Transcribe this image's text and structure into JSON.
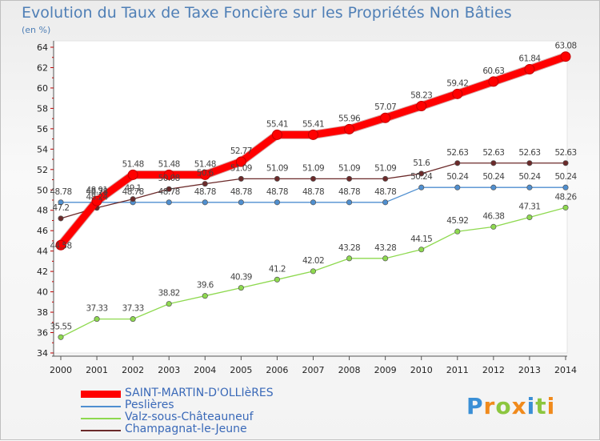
{
  "page": {
    "title": "Evolution du Taux de Taxe Foncière sur les Propriétés Non Bâties",
    "unit": "(en %)",
    "logo": "Proxiti"
  },
  "chart_data": {
    "type": "line",
    "title": "Evolution du Taux de Taxe Foncière sur les Propriétés Non Bâties",
    "ylabel": "(en %)",
    "xlabel": "",
    "ylim": [
      34,
      64
    ],
    "yticks": [
      34,
      36,
      38,
      40,
      42,
      44,
      46,
      48,
      50,
      52,
      54,
      56,
      58,
      60,
      62,
      64
    ],
    "grid": false,
    "legend_position": "bottom-left",
    "x": [
      "2000",
      "2001",
      "2002",
      "2003",
      "2004",
      "2005",
      "2006",
      "2007",
      "2008",
      "2009",
      "2010",
      "2011",
      "2012",
      "2013",
      "2014"
    ],
    "series": [
      {
        "name": "SAINT-MARTIN-D'OLLIèRES",
        "color": "#ff0000",
        "values": [
          44.58,
          48.91,
          51.48,
          51.48,
          51.48,
          52.77,
          55.41,
          55.41,
          55.96,
          57.07,
          58.23,
          59.42,
          60.63,
          61.84,
          63.08
        ],
        "labels": [
          "44.58",
          "48.91",
          "51.48",
          "51.48",
          "51.48",
          "52.77",
          "55.41",
          "55.41",
          "55.96",
          "57.07",
          "58.23",
          "59.42",
          "60.63",
          "61.84",
          "63.08"
        ]
      },
      {
        "name": "Peslières",
        "color": "#4f8fd0",
        "values": [
          48.78,
          48.78,
          48.78,
          48.78,
          48.78,
          48.78,
          48.78,
          48.78,
          48.78,
          48.78,
          50.24,
          50.24,
          50.24,
          50.24,
          50.24
        ],
        "labels": [
          "48.78",
          "48.78",
          "48.78",
          "48.78",
          "48.78",
          "48.78",
          "48.78",
          "48.78",
          "48.78",
          "48.78",
          "50.24",
          "50.24",
          "50.24",
          "50.24",
          "50.24"
        ]
      },
      {
        "name": "Valz-sous-Châteauneuf",
        "color": "#8ed94f",
        "values": [
          35.55,
          37.33,
          37.33,
          38.82,
          39.6,
          40.39,
          41.2,
          42.02,
          43.28,
          43.28,
          44.15,
          45.92,
          46.38,
          47.31,
          48.26
        ],
        "labels": [
          "35.55",
          "37.33",
          "37.33",
          "38.82",
          "39.6",
          "40.39",
          "41.2",
          "42.02",
          "43.28",
          "43.28",
          "44.15",
          "45.92",
          "46.38",
          "47.31",
          "48.26"
        ]
      },
      {
        "name": "Champagnat-le-Jeune",
        "color": "#6b2a2a",
        "values": [
          47.2,
          48.24,
          49.1,
          50.08,
          50.6,
          51.09,
          51.09,
          51.09,
          51.09,
          51.09,
          51.6,
          52.63,
          52.63,
          52.63,
          52.63
        ],
        "labels": [
          "47.2",
          "48.24",
          "49.1",
          "50.08",
          "50.6",
          "51.09",
          "51.09",
          "51.09",
          "51.09",
          "51.09",
          "51.6",
          "52.63",
          "52.63",
          "52.63",
          "52.63"
        ]
      }
    ]
  }
}
